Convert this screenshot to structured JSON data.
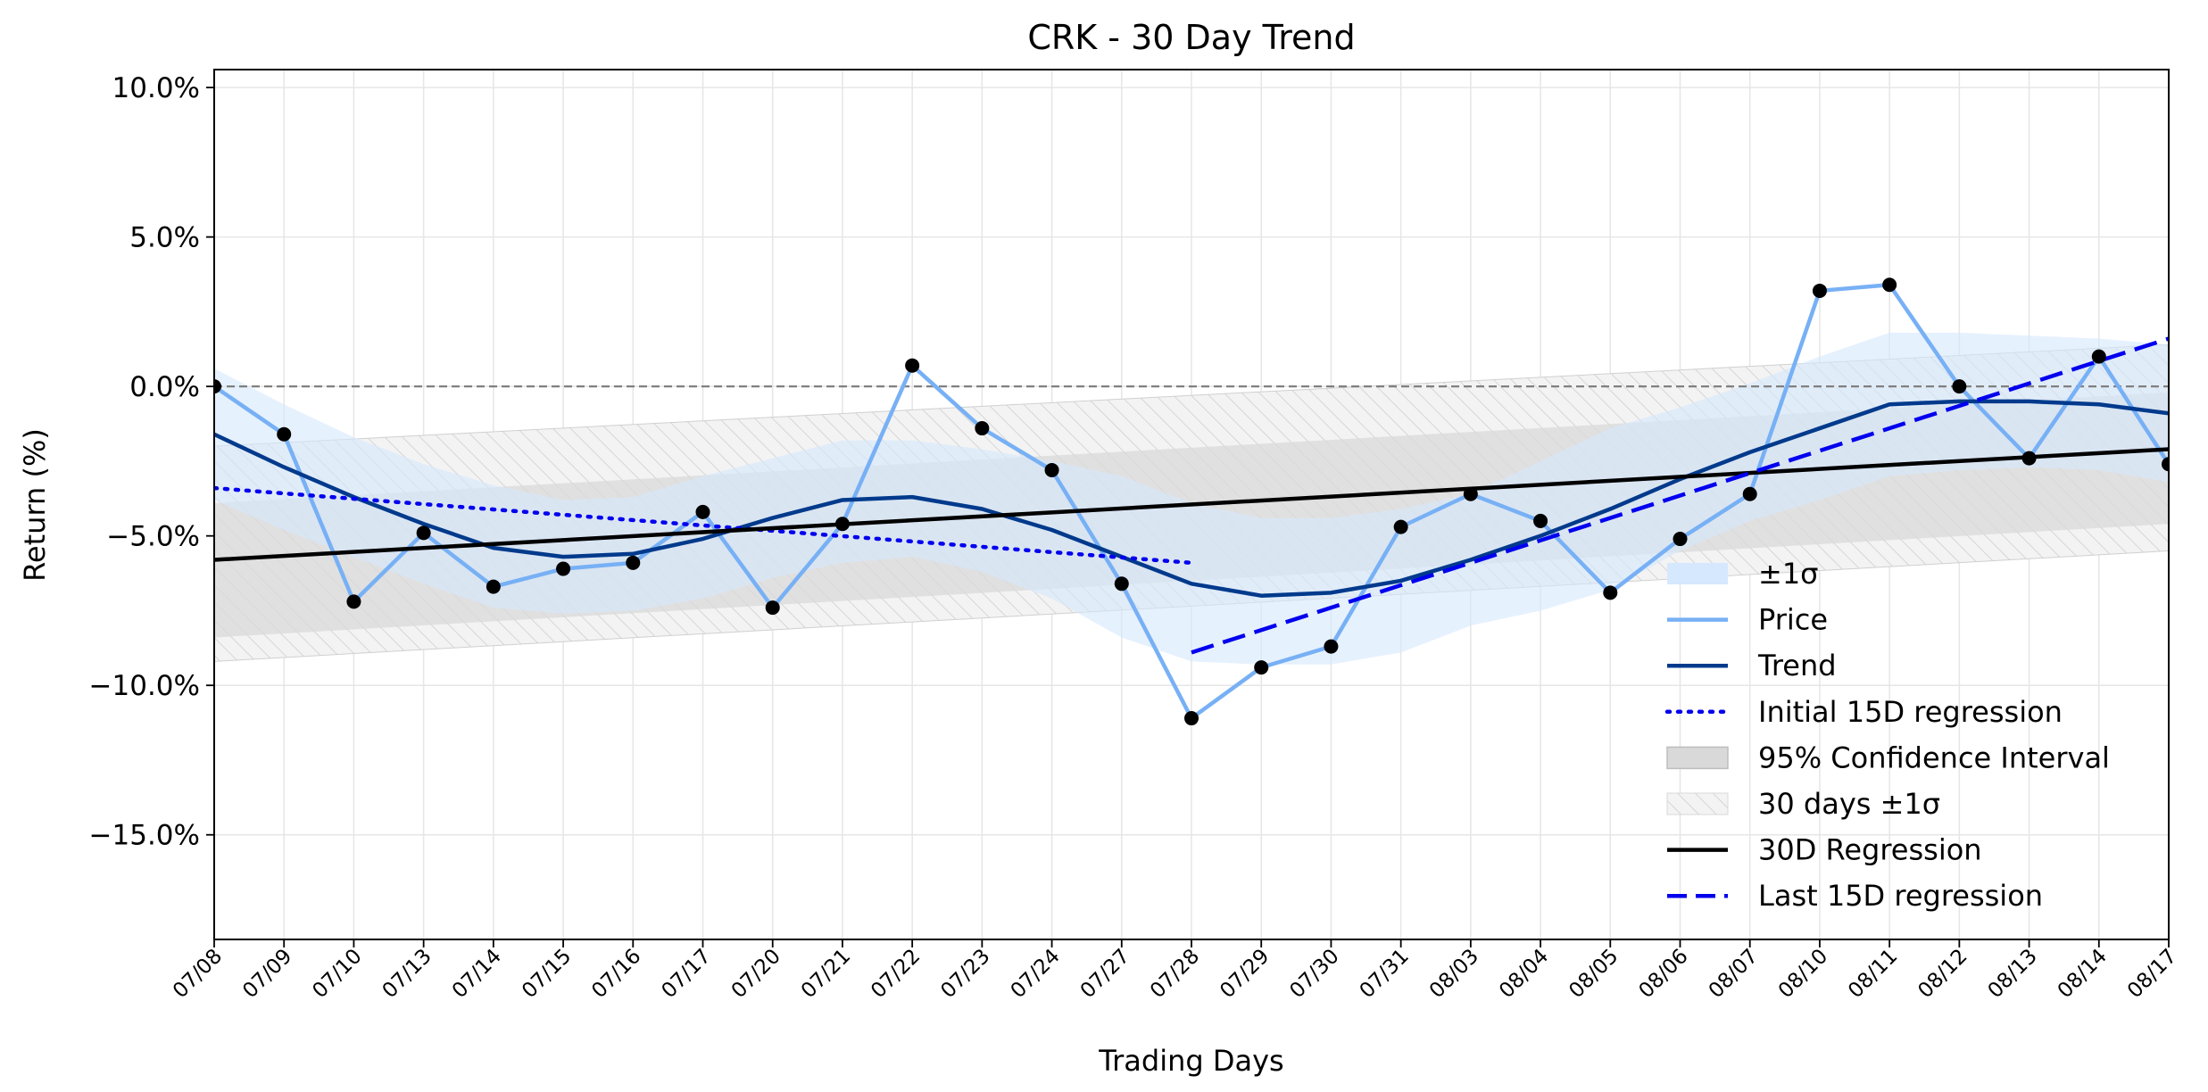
{
  "chart_data": {
    "type": "line",
    "title": "CRK - 30 Day Trend",
    "xlabel": "Trading Days",
    "ylabel": "Return (%)",
    "ylim": [
      -18.5,
      10.6
    ],
    "yticks": [
      10,
      5,
      0,
      -5,
      -10,
      -15
    ],
    "ytick_labels": [
      "10.0%",
      "5.0%",
      "0.0%",
      "−5.0%",
      "−10.0%",
      "−15.0%"
    ],
    "grid": true,
    "legend_position": "lower-right",
    "categories": [
      "07/08",
      "07/09",
      "07/10",
      "07/13",
      "07/14",
      "07/15",
      "07/16",
      "07/17",
      "07/20",
      "07/21",
      "07/22",
      "07/23",
      "07/24",
      "07/27",
      "07/28",
      "07/29",
      "07/30",
      "07/31",
      "08/03",
      "08/04",
      "08/05",
      "08/06",
      "08/07",
      "08/10",
      "08/11",
      "08/12",
      "08/13",
      "08/14",
      "08/17"
    ],
    "zero_line": 0,
    "series": [
      {
        "name": "Price",
        "color": "#77b0f5",
        "values": [
          0.0,
          -1.6,
          -7.2,
          -4.9,
          -6.7,
          -6.1,
          -5.9,
          -4.2,
          -7.4,
          -4.6,
          0.7,
          -1.4,
          -2.8,
          -6.6,
          -11.1,
          -9.4,
          -8.7,
          -4.7,
          -3.6,
          -4.5,
          -6.9,
          -5.1,
          -3.6,
          3.2,
          3.4,
          0.0,
          -2.4,
          1.0,
          -2.6
        ]
      },
      {
        "name": "Trend",
        "color": "#003a8c",
        "values": [
          -1.6,
          -2.7,
          -3.7,
          -4.6,
          -5.4,
          -5.7,
          -5.6,
          -5.1,
          -4.4,
          -3.8,
          -3.7,
          -4.1,
          -4.8,
          -5.7,
          -6.6,
          -7.0,
          -6.9,
          -6.5,
          -5.8,
          -5.0,
          -4.1,
          -3.1,
          -2.2,
          -1.4,
          -0.6,
          -0.5,
          -0.5,
          -0.6,
          -0.9
        ]
      },
      {
        "name": "Initial 15D regression",
        "color": "#0000ee",
        "style": "dotted",
        "x": [
          0,
          14
        ],
        "values": [
          -3.4,
          -5.9
        ]
      },
      {
        "name": "30D Regression",
        "color": "#000000",
        "x": [
          0,
          28
        ],
        "values": [
          -5.8,
          -2.1
        ]
      },
      {
        "name": "Last 15D regression",
        "color": "#0000ee",
        "style": "dashed",
        "x": [
          14,
          28
        ],
        "values": [
          -8.9,
          1.6
        ]
      }
    ],
    "bands": [
      {
        "name": "±1σ",
        "color": "#d6e8fd",
        "upper": [
          0.6,
          -0.6,
          -1.7,
          -2.6,
          -3.3,
          -3.8,
          -3.7,
          -3.0,
          -2.4,
          -1.8,
          -1.8,
          -2.1,
          -2.5,
          -3.0,
          -3.9,
          -4.4,
          -4.4,
          -4.1,
          -3.6,
          -2.5,
          -1.4,
          -0.7,
          0.1,
          1.0,
          1.8,
          1.8,
          1.7,
          1.6,
          1.4
        ],
        "lower": [
          -3.8,
          -4.8,
          -5.7,
          -6.6,
          -7.4,
          -7.6,
          -7.5,
          -7.1,
          -6.4,
          -5.9,
          -5.7,
          -6.2,
          -7.1,
          -8.4,
          -9.2,
          -9.3,
          -9.3,
          -8.9,
          -8.0,
          -7.5,
          -6.8,
          -5.5,
          -4.5,
          -3.8,
          -3.0,
          -2.8,
          -2.7,
          -2.8,
          -3.2
        ]
      },
      {
        "name": "95% Confidence Interval",
        "color": "#d9d9d9",
        "x": [
          0,
          28
        ],
        "upper": [
          -3.9,
          -0.2
        ],
        "lower": [
          -8.4,
          -4.6
        ]
      },
      {
        "name": "30 days ±1σ",
        "color": "#f0f0f0",
        "hatched": true,
        "x": [
          0,
          28
        ],
        "upper": [
          -2.0,
          1.4
        ],
        "lower": [
          -9.2,
          -5.5
        ]
      }
    ],
    "legend": [
      "±1σ",
      "Price",
      "Trend",
      "Initial 15D regression",
      "95% Confidence Interval",
      "30 days ±1σ",
      "30D Regression",
      "Last 15D regression"
    ]
  }
}
